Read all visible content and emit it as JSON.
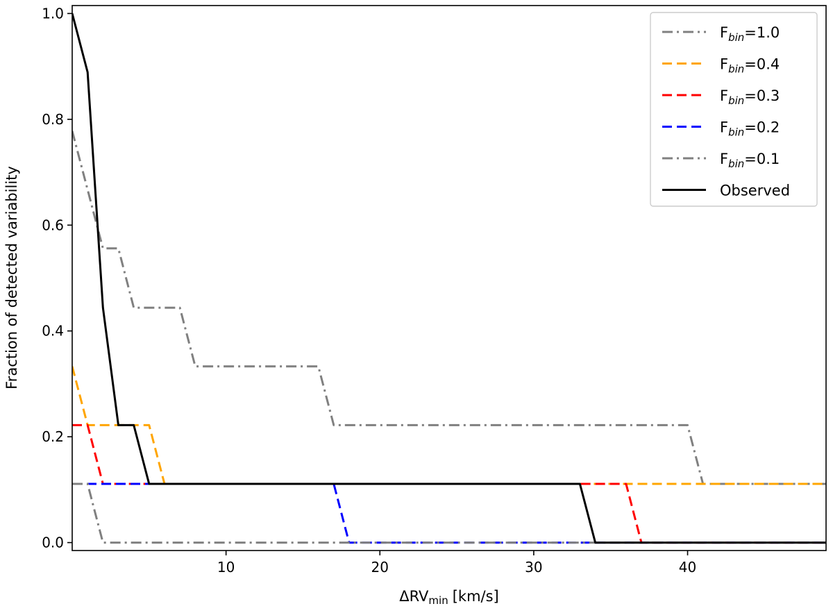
{
  "chart_data": {
    "type": "line",
    "title": "",
    "xlabel": "ΔRV",
    "xlabel_sub": "min",
    "xlabel_unit": "[km/s]",
    "ylabel": "Fraction of detected variability",
    "xlim": [
      0,
      49
    ],
    "ylim": [
      -0.015,
      1.015
    ],
    "xticks": [
      10,
      20,
      30,
      40
    ],
    "yticks": [
      0.0,
      0.2,
      0.4,
      0.6,
      0.8,
      1.0
    ],
    "xtick_labels": [
      "10",
      "20",
      "30",
      "40"
    ],
    "ytick_labels": [
      "0.0",
      "0.2",
      "0.4",
      "0.6",
      "0.8",
      "1.0"
    ],
    "legend_position": "top-right",
    "series": [
      {
        "name": "F_bin=1.0",
        "legend_main": "F",
        "legend_sub": "bin",
        "legend_value": "=1.0",
        "color": "#808080",
        "style": "dashdot",
        "x": [
          0,
          1,
          2,
          3,
          4,
          6,
          7,
          8,
          16,
          17,
          40,
          41,
          49
        ],
        "y": [
          0.778,
          0.667,
          0.556,
          0.556,
          0.444,
          0.444,
          0.444,
          0.333,
          0.333,
          0.222,
          0.222,
          0.111,
          0.111
        ]
      },
      {
        "name": "F_bin=0.4",
        "legend_main": "F",
        "legend_sub": "bin",
        "legend_value": "=0.4",
        "color": "#FFA500",
        "style": "dashed",
        "x": [
          0,
          1,
          5,
          6,
          49
        ],
        "y": [
          0.333,
          0.222,
          0.222,
          0.111,
          0.111
        ]
      },
      {
        "name": "F_bin=0.3",
        "legend_main": "F",
        "legend_sub": "bin",
        "legend_value": "=0.3",
        "color": "#FF0000",
        "style": "dashed",
        "x": [
          0,
          1,
          2,
          36,
          37,
          49
        ],
        "y": [
          0.222,
          0.222,
          0.111,
          0.111,
          0.0,
          0.0
        ]
      },
      {
        "name": "F_bin=0.2",
        "legend_main": "F",
        "legend_sub": "bin",
        "legend_value": "=0.2",
        "color": "#0000FF",
        "style": "dashed",
        "x": [
          0,
          17,
          18,
          49
        ],
        "y": [
          0.111,
          0.111,
          0.0,
          0.0
        ]
      },
      {
        "name": "F_bin=0.1",
        "legend_main": "F",
        "legend_sub": "bin",
        "legend_value": "=0.1",
        "color": "#808080",
        "style": "dashdot",
        "x": [
          0,
          1,
          2,
          49
        ],
        "y": [
          0.111,
          0.111,
          0.0,
          0.0
        ]
      },
      {
        "name": "Observed",
        "legend_main": "Observed",
        "legend_sub": "",
        "legend_value": "",
        "color": "#000000",
        "style": "solid",
        "x": [
          0,
          1,
          2,
          3,
          4,
          5,
          33,
          34,
          49
        ],
        "y": [
          1.0,
          0.889,
          0.444,
          0.222,
          0.222,
          0.111,
          0.111,
          0.0,
          0.0
        ]
      }
    ]
  }
}
